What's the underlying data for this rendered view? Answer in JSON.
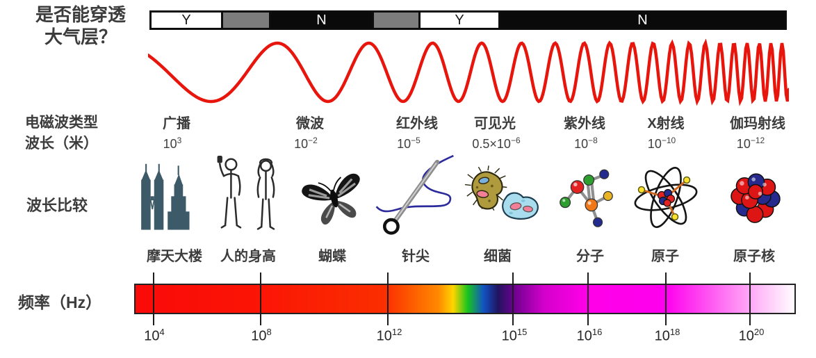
{
  "question": {
    "line1": "是否能穿透",
    "line2": "大气层？"
  },
  "atmosphere_bar": {
    "segments": [
      {
        "label": "Y",
        "style": "white"
      },
      {
        "label": "",
        "style": "gray"
      },
      {
        "label": "N",
        "style": "black"
      },
      {
        "label": "",
        "style": "gray"
      },
      {
        "label": "Y",
        "style": "white"
      },
      {
        "label": "N",
        "style": "black"
      }
    ]
  },
  "row_labels": {
    "type": "电磁波类型",
    "wavelength": "波长（米）",
    "comparison": "波长比较",
    "frequency": "频率（Hz）"
  },
  "spectrum": [
    {
      "type": "广播",
      "wl_base": "10",
      "wl_exp": "3"
    },
    {
      "type": "微波",
      "wl_base": "10",
      "wl_exp": "−2"
    },
    {
      "type": "红外线",
      "wl_base": "10",
      "wl_exp": "−5"
    },
    {
      "type": "可见光",
      "wl_base": "0.5×10",
      "wl_exp": "−6"
    },
    {
      "type": "紫外线",
      "wl_base": "10",
      "wl_exp": "−8"
    },
    {
      "type": "X射线",
      "wl_base": "10",
      "wl_exp": "−10"
    },
    {
      "type": "伽玛射线",
      "wl_base": "10",
      "wl_exp": "−12"
    }
  ],
  "comparisons": [
    {
      "label": "摩天大楼",
      "icon": "skyscraper-icon"
    },
    {
      "label": "人的身高",
      "icon": "human-height-icon"
    },
    {
      "label": "蝴蝶",
      "icon": "butterfly-icon"
    },
    {
      "label": "针尖",
      "icon": "needle-icon"
    },
    {
      "label": "细菌",
      "icon": "bacteria-icon"
    },
    {
      "label": "分子",
      "icon": "molecule-icon"
    },
    {
      "label": "原子",
      "icon": "atom-icon"
    },
    {
      "label": "原子核",
      "icon": "nucleus-icon"
    }
  ],
  "frequency_axis": {
    "ticks": [
      {
        "base": "10",
        "exp": "4"
      },
      {
        "base": "10",
        "exp": "8"
      },
      {
        "base": "10",
        "exp": "12"
      },
      {
        "base": "10",
        "exp": "15"
      },
      {
        "base": "10",
        "exp": "16"
      },
      {
        "base": "10",
        "exp": "18"
      },
      {
        "base": "10",
        "exp": "20"
      }
    ]
  },
  "colors": {
    "wave": "#e8150d",
    "skyscraper": "#3d5a68"
  }
}
